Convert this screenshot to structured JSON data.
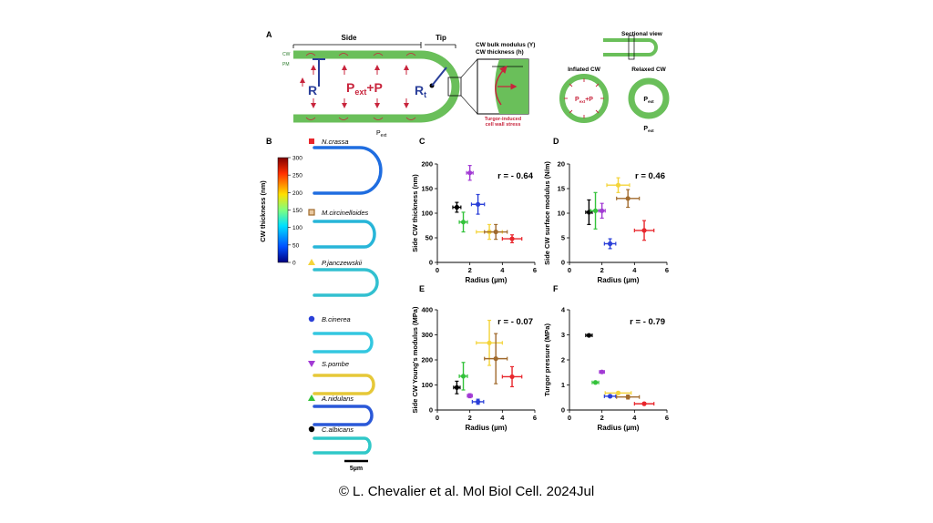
{
  "panel_a": {
    "letter": "A",
    "side": "Side",
    "tip": "Tip",
    "cw": "CW",
    "pm": "PM",
    "r": "R",
    "pressure": "P",
    "pressure_sub": "ext",
    "pressure_suffix": "+P",
    "rt": "R",
    "rt_sub": "t",
    "pext": "P",
    "pext_sub": "ext",
    "modulus": "CW bulk modulus (Y)",
    "thickness": "CW thickness (h)",
    "stress1": "Turgor-induced",
    "stress2": "cell wall stress",
    "sectional": "Sectional view",
    "inflated": "Inflated CW",
    "relaxed": "Relaxed CW",
    "in_p": "P",
    "in_sub": "ext",
    "in_suffix": "+P",
    "rel_p": "P",
    "rel_sub": "ext",
    "out_p": "P",
    "out_sub": "ext",
    "colors": {
      "wall": "#6abf5a",
      "arrow": "#c8243c",
      "radius": "#2a3f9a"
    }
  },
  "panel_b": {
    "letter": "B",
    "colorbar_label": "CW thickness (nm)",
    "colorbar_ticks": [
      "300",
      "250",
      "200",
      "150",
      "100",
      "50",
      "0"
    ],
    "species": [
      {
        "name": "N.crassa",
        "color": "#e8262c",
        "marker": "square"
      },
      {
        "name": "M.circinelloides",
        "color": "#a06a2c",
        "marker": "open-square"
      },
      {
        "name": "P.janczewskii",
        "color": "#f4d43a",
        "marker": "triangle"
      },
      {
        "name": "B.cinerea",
        "color": "#2a3fd8",
        "marker": "circle"
      },
      {
        "name": "S.pombe",
        "color": "#a23ad4",
        "marker": "down-triangle"
      },
      {
        "name": "A.nidulans",
        "color": "#33c23a",
        "marker": "triangle"
      },
      {
        "name": "C.albicans",
        "color": "#000000",
        "marker": "circle"
      }
    ],
    "scale_bar": "5µm"
  },
  "chart_data": [
    {
      "panel": "C",
      "type": "scatter",
      "xlabel": "Radius (µm)",
      "ylabel": "Side CW thickness (nm)",
      "xlim": [
        0,
        6
      ],
      "ylim": [
        0,
        200
      ],
      "xticks": [
        0,
        2,
        4,
        6
      ],
      "yticks": [
        0,
        50,
        100,
        150,
        200
      ],
      "annotation": "r = - 0.64",
      "points": [
        {
          "x": 1.2,
          "y": 112,
          "xerr": 0.25,
          "yerr": 10,
          "color": "#000000"
        },
        {
          "x": 1.6,
          "y": 82,
          "xerr": 0.25,
          "yerr": 20,
          "color": "#33c23a"
        },
        {
          "x": 2.0,
          "y": 182,
          "xerr": 0.2,
          "yerr": 15,
          "color": "#a23ad4"
        },
        {
          "x": 2.5,
          "y": 118,
          "xerr": 0.4,
          "yerr": 20,
          "color": "#2a3fd8"
        },
        {
          "x": 3.2,
          "y": 62,
          "xerr": 0.8,
          "yerr": 15,
          "color": "#f4d43a"
        },
        {
          "x": 3.6,
          "y": 62,
          "xerr": 0.7,
          "yerr": 15,
          "color": "#a06a2c"
        },
        {
          "x": 4.6,
          "y": 48,
          "xerr": 0.6,
          "yerr": 8,
          "color": "#e8262c"
        }
      ]
    },
    {
      "panel": "D",
      "type": "scatter",
      "xlabel": "Radius (µm)",
      "ylabel": "Side CW surface modulus (N/m)",
      "xlim": [
        0,
        6
      ],
      "ylim": [
        0,
        20
      ],
      "xticks": [
        0,
        2,
        4,
        6
      ],
      "yticks": [
        0,
        5,
        10,
        15,
        20
      ],
      "annotation": "r = 0.46",
      "points": [
        {
          "x": 1.2,
          "y": 10.2,
          "xerr": 0.2,
          "yerr": 2.5,
          "color": "#000000"
        },
        {
          "x": 1.6,
          "y": 10.5,
          "xerr": 0.3,
          "yerr": 3.7,
          "color": "#33c23a"
        },
        {
          "x": 2.0,
          "y": 10.5,
          "xerr": 0.2,
          "yerr": 1.5,
          "color": "#a23ad4"
        },
        {
          "x": 2.5,
          "y": 3.8,
          "xerr": 0.35,
          "yerr": 1.0,
          "color": "#2a3fd8"
        },
        {
          "x": 3.0,
          "y": 15.7,
          "xerr": 0.7,
          "yerr": 1.5,
          "color": "#f4d43a"
        },
        {
          "x": 3.6,
          "y": 13.0,
          "xerr": 0.7,
          "yerr": 1.8,
          "color": "#a06a2c"
        },
        {
          "x": 4.6,
          "y": 6.5,
          "xerr": 0.6,
          "yerr": 2.0,
          "color": "#e8262c"
        }
      ]
    },
    {
      "panel": "E",
      "type": "scatter",
      "xlabel": "Radius (µm)",
      "ylabel": "Side CW Young's modulus (MPa)",
      "xlim": [
        0,
        6
      ],
      "ylim": [
        0,
        400
      ],
      "xticks": [
        0,
        2,
        4,
        6
      ],
      "yticks": [
        0,
        100,
        200,
        300,
        400
      ],
      "annotation": "r = - 0.07",
      "points": [
        {
          "x": 1.2,
          "y": 90,
          "xerr": 0.2,
          "yerr": 25,
          "color": "#000000"
        },
        {
          "x": 1.6,
          "y": 135,
          "xerr": 0.25,
          "yerr": 55,
          "color": "#33c23a"
        },
        {
          "x": 2.0,
          "y": 57,
          "xerr": 0.15,
          "yerr": 8,
          "color": "#a23ad4"
        },
        {
          "x": 2.5,
          "y": 33,
          "xerr": 0.35,
          "yerr": 10,
          "color": "#2a3fd8"
        },
        {
          "x": 3.2,
          "y": 268,
          "xerr": 0.8,
          "yerr": 90,
          "color": "#f4d43a"
        },
        {
          "x": 3.6,
          "y": 205,
          "xerr": 0.7,
          "yerr": 100,
          "color": "#a06a2c"
        },
        {
          "x": 4.6,
          "y": 133,
          "xerr": 0.6,
          "yerr": 40,
          "color": "#e8262c"
        }
      ]
    },
    {
      "panel": "F",
      "type": "scatter",
      "xlabel": "Radius (µm)",
      "ylabel": "Turgor pressure (MPa)",
      "xlim": [
        0,
        6
      ],
      "ylim": [
        0,
        4
      ],
      "xticks": [
        0,
        2,
        4,
        6
      ],
      "yticks": [
        0,
        1,
        2,
        3,
        4
      ],
      "annotation": "r = - 0.79",
      "points": [
        {
          "x": 1.2,
          "y": 2.98,
          "xerr": 0.2,
          "yerr": 0.05,
          "color": "#000000"
        },
        {
          "x": 1.6,
          "y": 1.1,
          "xerr": 0.2,
          "yerr": 0.05,
          "color": "#33c23a"
        },
        {
          "x": 2.0,
          "y": 1.52,
          "xerr": 0.15,
          "yerr": 0.05,
          "color": "#a23ad4"
        },
        {
          "x": 2.5,
          "y": 0.55,
          "xerr": 0.35,
          "yerr": 0.05,
          "color": "#2a3fd8"
        },
        {
          "x": 3.0,
          "y": 0.68,
          "xerr": 0.8,
          "yerr": 0.05,
          "color": "#f4d43a"
        },
        {
          "x": 3.6,
          "y": 0.52,
          "xerr": 0.7,
          "yerr": 0.08,
          "color": "#a06a2c"
        },
        {
          "x": 4.6,
          "y": 0.25,
          "xerr": 0.6,
          "yerr": 0.05,
          "color": "#e8262c"
        }
      ]
    }
  ],
  "caption": "© L. Chevalier et al. Mol Biol Cell. 2024Jul"
}
